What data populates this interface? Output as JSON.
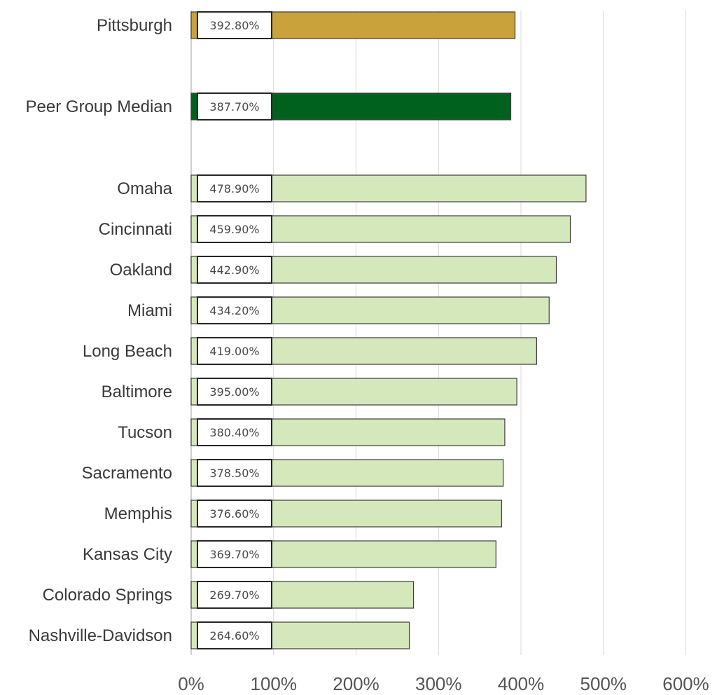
{
  "chart_data": {
    "type": "bar",
    "orientation": "horizontal",
    "title": "",
    "xlabel": "",
    "ylabel": "",
    "xlim": [
      0,
      600
    ],
    "ticks": [
      "0%",
      "100%",
      "200%",
      "300%",
      "400%",
      "500%",
      "600%"
    ],
    "grid": true,
    "categories": [
      "Pittsburgh",
      "Peer Group Median",
      "Omaha",
      "Cincinnati",
      "Oakland",
      "Miami",
      "Long Beach",
      "Baltimore",
      "Tucson",
      "Sacramento",
      "Memphis",
      "Kansas City",
      "Colorado Springs",
      "Nashville-Davidson"
    ],
    "values": [
      392.8,
      387.7,
      478.9,
      459.9,
      442.9,
      434.2,
      419.0,
      395.0,
      380.4,
      378.5,
      376.6,
      369.7,
      269.7,
      264.6
    ],
    "data_labels": [
      "392.80%",
      "387.70%",
      "478.90%",
      "459.90%",
      "442.90%",
      "434.20%",
      "419.00%",
      "395.00%",
      "380.40%",
      "378.50%",
      "376.60%",
      "369.70%",
      "269.70%",
      "264.60%"
    ],
    "bar_colors": [
      "#c9a23c",
      "#00611f",
      "#d5e8bb",
      "#d5e8bb",
      "#d5e8bb",
      "#d5e8bb",
      "#d5e8bb",
      "#d5e8bb",
      "#d5e8bb",
      "#d5e8bb",
      "#d5e8bb",
      "#d5e8bb",
      "#d5e8bb",
      "#d5e8bb"
    ],
    "colors": {
      "highlight": "#c9a23c",
      "median": "#00611f",
      "peers": "#d5e8bb"
    }
  }
}
